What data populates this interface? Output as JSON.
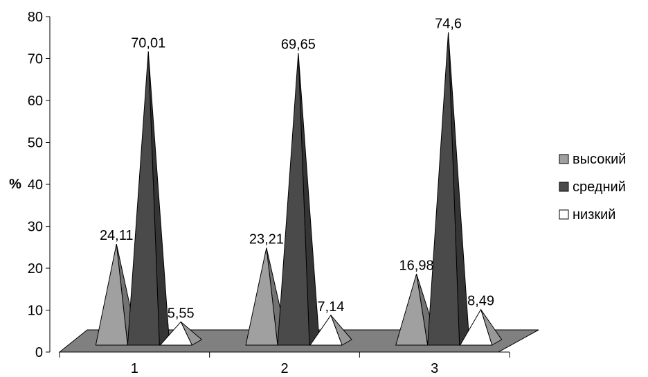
{
  "chart_data": {
    "type": "bar",
    "bar_shape": "pyramid",
    "categories": [
      "1",
      "2",
      "3"
    ],
    "series": [
      {
        "name": "высокий",
        "values": [
          24.11,
          23.21,
          16.98
        ],
        "color": "#a0a0a0"
      },
      {
        "name": "средний",
        "values": [
          70.01,
          69.65,
          74.6
        ],
        "color": "#4a4a4a"
      },
      {
        "name": "низкий",
        "values": [
          5.55,
          7.14,
          8.49
        ],
        "color": "#ffffff"
      }
    ],
    "data_labels": [
      [
        "24,11",
        "23,21",
        "16,98"
      ],
      [
        "70,01",
        "69,65",
        "74,6"
      ],
      [
        "5,55",
        "7,14",
        "8,49"
      ]
    ],
    "ylabel": "%",
    "ylim": [
      0,
      80
    ],
    "yticks": [
      0,
      10,
      20,
      30,
      40,
      50,
      60,
      70,
      80
    ],
    "legend_position": "right",
    "floor_color": "#808080",
    "grid": false
  }
}
